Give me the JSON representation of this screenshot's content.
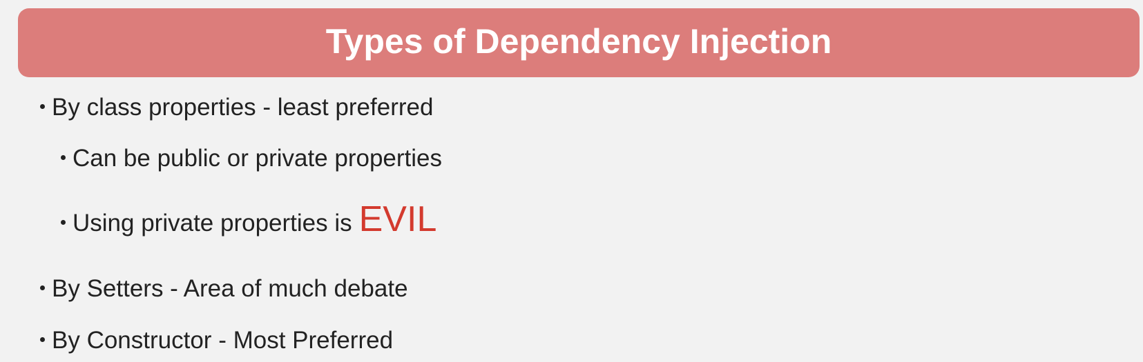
{
  "slide": {
    "title": "Types of Dependency Injection",
    "bullets": [
      {
        "text": "By class properties - least preferred",
        "level": 1
      },
      {
        "text": "Can be public or private properties",
        "level": 2
      },
      {
        "text": "Using private properties is",
        "emphasis": "EVIL",
        "level": 2
      },
      {
        "text": "By Setters - Area of much debate",
        "level": 1
      },
      {
        "text": "By Constructor - Most Preferred",
        "level": 1
      }
    ]
  },
  "colors": {
    "title_bar": "#dc7d7b",
    "title_text": "#ffffff",
    "background": "#f2f2f2",
    "body_text": "#222222",
    "emphasis": "#d33a2e"
  }
}
